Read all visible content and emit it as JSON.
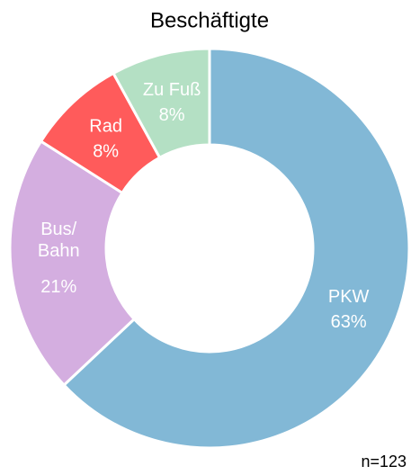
{
  "chart_data": {
    "type": "donut",
    "title": "Beschäftigte",
    "categories": [
      "PKW",
      "Bus/\nBahn",
      "Rad",
      "Zu Fuß"
    ],
    "values": [
      63,
      21,
      8,
      8
    ],
    "value_labels": [
      "63%",
      "21%",
      "8%",
      "8%"
    ],
    "colors": [
      "#82b8d6",
      "#d4aee0",
      "#ff5b5b",
      "#b4e0c4"
    ],
    "note": "n=123"
  }
}
